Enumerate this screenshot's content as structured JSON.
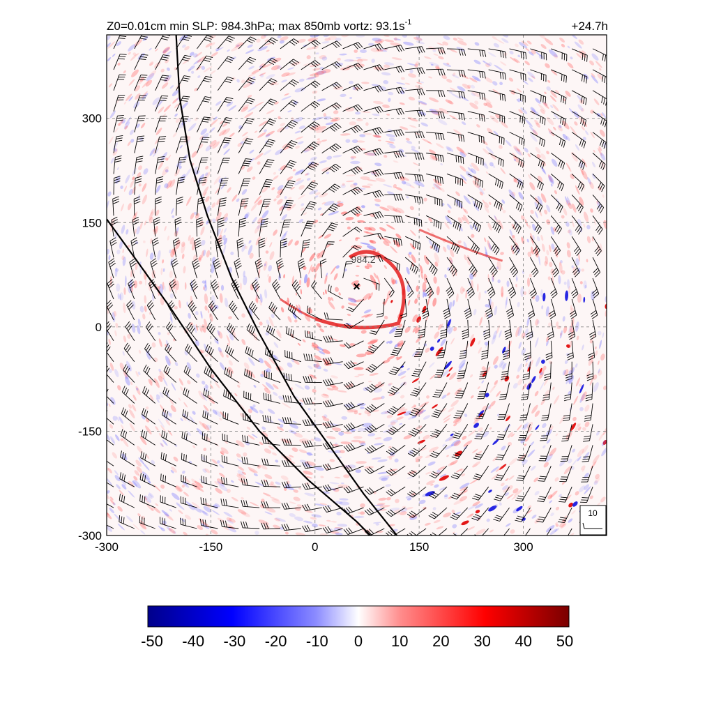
{
  "chart_data": {
    "type": "heatmap",
    "title_left": "Z0=0.01cm  min SLP: 984.3hPa; max 850mb vortz:  93.1s",
    "title_left_sup": "-1",
    "title_right": "+24.7h",
    "xlim": [
      -300,
      420
    ],
    "ylim": [
      -300,
      420
    ],
    "xticks": [
      "-300",
      "-150",
      "0",
      "150",
      "300"
    ],
    "yticks": [
      "-300",
      "-150",
      "0",
      "150",
      "300"
    ],
    "xtick_values": [
      -300,
      -150,
      0,
      150,
      300
    ],
    "ytick_values": [
      -300,
      -150,
      0,
      150,
      300
    ],
    "grid": true,
    "colormap": "blue-white-red",
    "colorbar": {
      "min": -50,
      "max": 50,
      "labels": [
        "-50",
        "-40",
        "-30",
        "-20",
        "-10",
        "0",
        "10",
        "20",
        "30",
        "40",
        "50"
      ]
    },
    "min_slp_marker": {
      "x": 60,
      "y": 58,
      "symbol": "×"
    },
    "contour_label": {
      "x": 52,
      "y": 92,
      "text": "984.2"
    },
    "contour_lines": [
      [
        [
          -200,
          420
        ],
        [
          -195,
          330
        ],
        [
          -180,
          240
        ],
        [
          -155,
          160
        ],
        [
          -120,
          70
        ],
        [
          -80,
          -10
        ],
        [
          -30,
          -100
        ],
        [
          20,
          -170
        ],
        [
          70,
          -240
        ],
        [
          118,
          -300
        ]
      ],
      [
        [
          -300,
          155
        ],
        [
          -260,
          100
        ],
        [
          -210,
          30
        ],
        [
          -150,
          -60
        ],
        [
          -80,
          -150
        ],
        [
          -10,
          -220
        ],
        [
          60,
          -280
        ],
        [
          80,
          -300
        ]
      ]
    ],
    "vortex_center": {
      "x": 60,
      "y": 58
    },
    "wind_legend": {
      "label": "10"
    }
  }
}
